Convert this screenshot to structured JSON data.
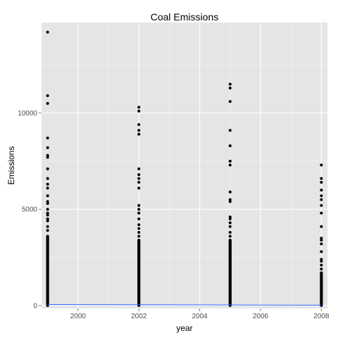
{
  "chart_data": {
    "type": "scatter",
    "title": "Coal Emissions",
    "xlabel": "year",
    "ylabel": "Emissions",
    "xlim": [
      1998.8,
      2008.2
    ],
    "ylim": [
      -150,
      14700
    ],
    "x_ticks": [
      2000,
      2002,
      2004,
      2006,
      2008
    ],
    "x_tick_labels": [
      "2000",
      "2002",
      "2004",
      "2006",
      "2008"
    ],
    "y_ticks": [
      0,
      5000,
      10000
    ],
    "y_tick_labels": [
      "0",
      "5000",
      "10000"
    ],
    "grid": true,
    "legend": "none",
    "colors": {
      "panel": "#e5e5e5",
      "grid_major": "#ffffff",
      "grid_minor": "#f2f2f2",
      "points": "#000000",
      "trend": "#3366ff"
    },
    "series": [
      {
        "years": [
          1999,
          2002,
          2005,
          2008
        ],
        "dense_range": [
          [
            0,
            3600
          ],
          [
            0,
            3400
          ],
          [
            0,
            3400
          ],
          [
            0,
            1700
          ]
        ],
        "outliers": [
          [
            14200,
            10900,
            10500,
            8700,
            8200,
            7800,
            7700,
            7100,
            6600,
            6300,
            6100,
            5700,
            5400,
            5300,
            5000,
            4800,
            4700,
            4500,
            4400,
            4100,
            3900
          ],
          [
            10300,
            10100,
            9400,
            9100,
            8900,
            7100,
            6800,
            6600,
            6400,
            6100,
            5200,
            5000,
            4800,
            4500,
            4200,
            4000,
            3800,
            3600
          ],
          [
            11500,
            11300,
            10600,
            9100,
            8300,
            7500,
            7300,
            5900,
            5500,
            5400,
            4600,
            4500,
            4300,
            4100,
            3800,
            3600
          ],
          [
            7300,
            6600,
            6400,
            6000,
            5700,
            5500,
            5200,
            4800,
            4100,
            3500,
            3400,
            3200,
            2800,
            2400,
            2300,
            2100,
            1900
          ]
        ]
      }
    ],
    "trend": {
      "x": [
        1999,
        2008
      ],
      "y": [
        50,
        20
      ]
    }
  }
}
